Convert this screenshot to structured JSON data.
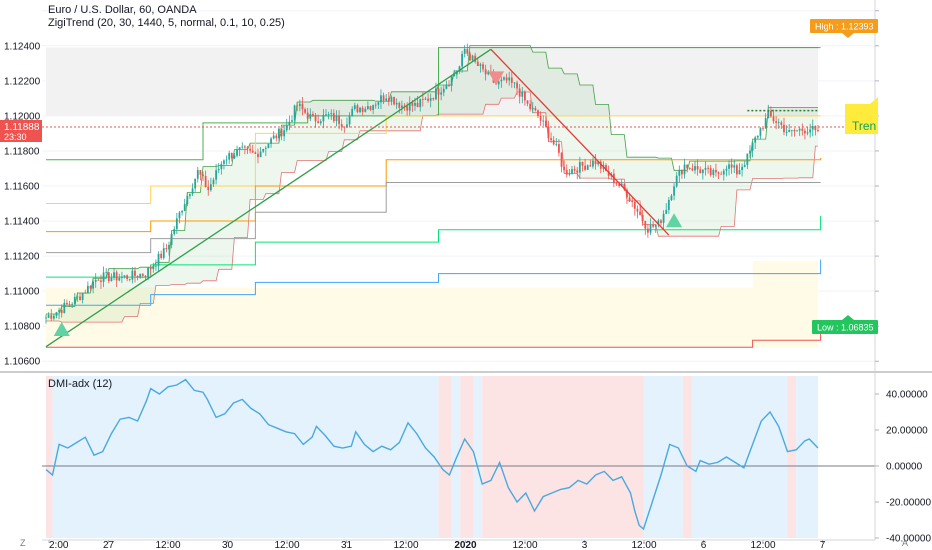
{
  "header": {
    "symbol_line": "Euro / U.S. Dollar, 60, OANDA",
    "indicator_line": "ZigiTrend (20, 30, 1440, 5, normal, 0.1, 10, 0.25)"
  },
  "lower_pane": {
    "indicator_label": "DMI-adx (12)"
  },
  "colors": {
    "up": "#26a69a",
    "down": "#ef5350",
    "bull_bg": "#e3f2fd",
    "bear_bg": "#fde4e4",
    "high_badge": "#f59c1a",
    "low_badge": "#22c55e",
    "price_badge": "#ef5350",
    "trend_badge": "#ffeb3b",
    "adx_line": "#4aa8e0"
  },
  "badges": {
    "current_price": "1.11888",
    "countdown": "23:30",
    "high_label": "High : 1.12393",
    "low_label": "Low : 1.06835",
    "trend_label": "Tren"
  },
  "bottom_icons": {
    "left": "Z",
    "right": "A"
  },
  "chart_data": [
    {
      "type": "candlestick",
      "title": "Euro / U.S. Dollar, 60, OANDA",
      "ylim": [
        1.1055,
        1.1265
      ],
      "y_ticks": [
        {
          "value": 1.126,
          "label": ""
        },
        {
          "value": 1.124,
          "label": "1.12400"
        },
        {
          "value": 1.122,
          "label": "1.12200"
        },
        {
          "value": 1.12,
          "label": "1.12000"
        },
        {
          "value": 1.118,
          "label": "1.11800"
        },
        {
          "value": 1.116,
          "label": "1.11600"
        },
        {
          "value": 1.114,
          "label": "1.11400"
        },
        {
          "value": 1.112,
          "label": "1.11200"
        },
        {
          "value": 1.11,
          "label": "1.11000"
        },
        {
          "value": 1.108,
          "label": "1.10800"
        },
        {
          "value": 1.106,
          "label": "1.10600"
        }
      ],
      "x_ticks": [
        "2:00",
        "27",
        "12:00",
        "30",
        "12:00",
        "31",
        "12:00",
        "2020",
        "12:00",
        "3",
        "12:00",
        "6",
        "12:00",
        "7"
      ],
      "price_path": [
        [
          0,
          1.1085
        ],
        [
          6,
          1.109
        ],
        [
          12,
          1.1096
        ],
        [
          20,
          1.1108
        ],
        [
          30,
          1.1108
        ],
        [
          38,
          1.111
        ],
        [
          46,
          1.1124
        ],
        [
          52,
          1.1148
        ],
        [
          58,
          1.1168
        ],
        [
          62,
          1.1158
        ],
        [
          68,
          1.1176
        ],
        [
          74,
          1.118
        ],
        [
          80,
          1.1178
        ],
        [
          86,
          1.1186
        ],
        [
          92,
          1.1194
        ],
        [
          96,
          1.1206
        ],
        [
          102,
          1.1198
        ],
        [
          108,
          1.12
        ],
        [
          114,
          1.1196
        ],
        [
          118,
          1.1204
        ],
        [
          124,
          1.1206
        ],
        [
          130,
          1.1212
        ],
        [
          136,
          1.1206
        ],
        [
          142,
          1.1206
        ],
        [
          148,
          1.1212
        ],
        [
          154,
          1.122
        ],
        [
          158,
          1.1228
        ],
        [
          160,
          1.1238
        ],
        [
          164,
          1.123
        ],
        [
          168,
          1.1224
        ],
        [
          172,
          1.1218
        ],
        [
          176,
          1.122
        ],
        [
          180,
          1.1216
        ],
        [
          184,
          1.1206
        ],
        [
          188,
          1.12
        ],
        [
          192,
          1.119
        ],
        [
          196,
          1.1178
        ],
        [
          198,
          1.1168
        ],
        [
          202,
          1.117
        ],
        [
          206,
          1.1172
        ],
        [
          210,
          1.1174
        ],
        [
          214,
          1.1168
        ],
        [
          218,
          1.1162
        ],
        [
          222,
          1.1156
        ],
        [
          226,
          1.1146
        ],
        [
          230,
          1.1136
        ],
        [
          234,
          1.1138
        ],
        [
          237,
          1.1148
        ],
        [
          240,
          1.1162
        ],
        [
          244,
          1.1172
        ],
        [
          248,
          1.117
        ],
        [
          252,
          1.1168
        ],
        [
          256,
          1.1166
        ],
        [
          260,
          1.1172
        ],
        [
          264,
          1.1168
        ],
        [
          268,
          1.1176
        ],
        [
          272,
          1.119
        ],
        [
          276,
          1.12
        ],
        [
          280,
          1.1196
        ],
        [
          284,
          1.119
        ],
        [
          288,
          1.1192
        ],
        [
          292,
          1.1193
        ],
        [
          295,
          1.1189
        ]
      ],
      "n_bars": 296,
      "zigzag": [
        [
          0,
          1.10683
        ],
        [
          170,
          1.1238
        ],
        [
          238,
          1.1132
        ]
      ],
      "high": 1.12393,
      "low": 1.06835,
      "current_price": 1.11888
    },
    {
      "type": "line",
      "title": "DMI-adx (12)",
      "ylim": [
        -40,
        50
      ],
      "y_ticks": [
        {
          "value": 40,
          "label": "40.00000"
        },
        {
          "value": 20,
          "label": "20.00000"
        },
        {
          "value": 0,
          "label": "0.00000"
        },
        {
          "value": -20,
          "label": "-20.00000"
        },
        {
          "value": -40,
          "label": "-40.00000"
        }
      ],
      "series": [
        {
          "values": [
            [
              0,
              -2
            ],
            [
              3,
              -5
            ],
            [
              6,
              12
            ],
            [
              10,
              10
            ],
            [
              14,
              13
            ],
            [
              18,
              16
            ],
            [
              22,
              6
            ],
            [
              26,
              8
            ],
            [
              30,
              18
            ],
            [
              34,
              26
            ],
            [
              38,
              27
            ],
            [
              42,
              25
            ],
            [
              46,
              36
            ],
            [
              48,
              43
            ],
            [
              52,
              40
            ],
            [
              56,
              44
            ],
            [
              60,
              45
            ],
            [
              64,
              48
            ],
            [
              68,
              42
            ],
            [
              72,
              41
            ],
            [
              74,
              37
            ],
            [
              78,
              27
            ],
            [
              82,
              29
            ],
            [
              86,
              35
            ],
            [
              90,
              37
            ],
            [
              94,
              32
            ],
            [
              98,
              29
            ],
            [
              102,
              23
            ],
            [
              106,
              21
            ],
            [
              110,
              19
            ],
            [
              114,
              18
            ],
            [
              118,
              12
            ],
            [
              122,
              16
            ],
            [
              124,
              22
            ],
            [
              128,
              17
            ],
            [
              132,
              11
            ],
            [
              136,
              10
            ],
            [
              140,
              11
            ],
            [
              142,
              19
            ],
            [
              146,
              12
            ],
            [
              150,
              8
            ],
            [
              154,
              11
            ],
            [
              158,
              9
            ],
            [
              162,
              13
            ],
            [
              166,
              24
            ],
            [
              170,
              18
            ],
            [
              174,
              10
            ],
            [
              178,
              5
            ],
            [
              182,
              -2
            ],
            [
              185,
              -5
            ],
            [
              188,
              4
            ],
            [
              192,
              15
            ],
            [
              196,
              8
            ],
            [
              200,
              -10
            ],
            [
              204,
              -8
            ],
            [
              208,
              2
            ],
            [
              212,
              -12
            ],
            [
              216,
              -20
            ],
            [
              220,
              -15
            ],
            [
              224,
              -25
            ],
            [
              228,
              -17
            ],
            [
              232,
              -15
            ],
            [
              236,
              -13
            ],
            [
              240,
              -12
            ],
            [
              244,
              -8
            ],
            [
              248,
              -10
            ],
            [
              252,
              -5
            ],
            [
              256,
              -3
            ],
            [
              260,
              -8
            ],
            [
              264,
              -6
            ],
            [
              268,
              -15
            ],
            [
              270,
              -25
            ],
            [
              272,
              -33
            ],
            [
              274,
              -35
            ],
            [
              278,
              -20
            ],
            [
              282,
              -5
            ],
            [
              286,
              12
            ],
            [
              290,
              10
            ],
            [
              294,
              0
            ],
            [
              298,
              -3
            ],
            [
              300,
              3
            ],
            [
              304,
              1
            ],
            [
              308,
              2
            ],
            [
              312,
              5
            ],
            [
              316,
              2
            ],
            [
              320,
              -1
            ],
            [
              324,
              12
            ],
            [
              328,
              25
            ],
            [
              332,
              30
            ],
            [
              336,
              22
            ],
            [
              340,
              8
            ],
            [
              344,
              9
            ],
            [
              348,
              14
            ],
            [
              350,
              15
            ],
            [
              354,
              10
            ]
          ]
        }
      ],
      "regimes": [
        {
          "from": 0,
          "to": 3,
          "kind": "bear"
        },
        {
          "from": 3,
          "to": 180,
          "kind": "bull"
        },
        {
          "from": 180,
          "to": 186,
          "kind": "bear"
        },
        {
          "from": 186,
          "to": 190,
          "kind": "bull"
        },
        {
          "from": 190,
          "to": 196,
          "kind": "bear"
        },
        {
          "from": 196,
          "to": 200,
          "kind": "bull"
        },
        {
          "from": 200,
          "to": 274,
          "kind": "bear"
        },
        {
          "from": 274,
          "to": 292,
          "kind": "bull"
        },
        {
          "from": 292,
          "to": 296,
          "kind": "bear"
        },
        {
          "from": 296,
          "to": 340,
          "kind": "bull"
        },
        {
          "from": 340,
          "to": 344,
          "kind": "bear"
        },
        {
          "from": 344,
          "to": 362,
          "kind": "bull"
        }
      ]
    }
  ]
}
